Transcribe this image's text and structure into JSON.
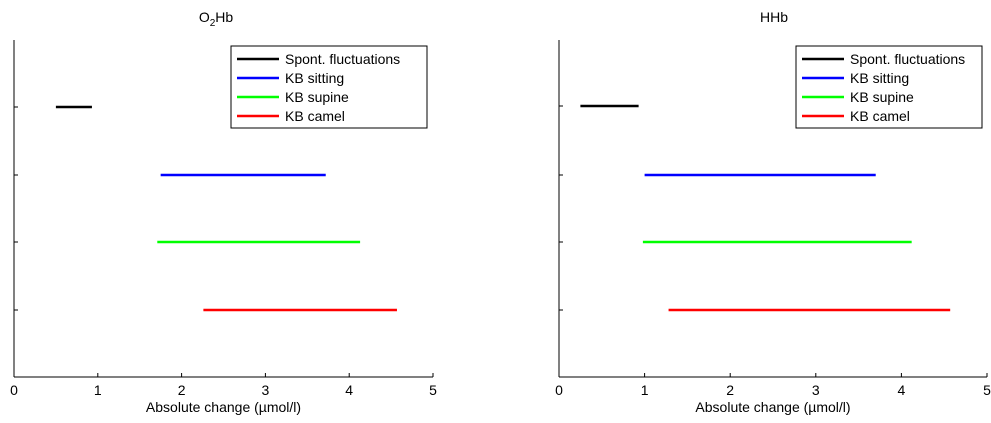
{
  "chart_data": [
    {
      "type": "range",
      "title": "O2Hb",
      "title_main": "O",
      "title_sub": "2",
      "title_tail": "Hb",
      "xlabel": "Absolute change (µmol/l)",
      "ylabel": "",
      "xlim": [
        0,
        5
      ],
      "xticks": [
        "0",
        "1",
        "2",
        "3",
        "4",
        "5"
      ],
      "grid": false,
      "legend_position": "top-right",
      "series": [
        {
          "name": "Spont. fluctuations",
          "color": "#000000",
          "x": [
            0.5,
            0.93
          ]
        },
        {
          "name": "KB sitting",
          "color": "#0000ff",
          "x": [
            1.75,
            3.72
          ]
        },
        {
          "name": "KB supine",
          "color": "#00ff00",
          "x": [
            1.71,
            4.13
          ]
        },
        {
          "name": "KB camel",
          "color": "#ff0000",
          "x": [
            2.26,
            4.57
          ]
        }
      ]
    },
    {
      "type": "range",
      "title": "HHb",
      "xlabel": "Absolute change (µmol/l)",
      "ylabel": "",
      "xlim": [
        0,
        5
      ],
      "xticks": [
        "0",
        "1",
        "2",
        "3",
        "4",
        "5"
      ],
      "grid": false,
      "legend_position": "top-right",
      "series": [
        {
          "name": "Spont. fluctuations",
          "color": "#000000",
          "x": [
            0.25,
            0.93
          ]
        },
        {
          "name": "KB sitting",
          "color": "#0000ff",
          "x": [
            1.0,
            3.7
          ]
        },
        {
          "name": "KB supine",
          "color": "#00ff00",
          "x": [
            0.98,
            4.12
          ]
        },
        {
          "name": "KB camel",
          "color": "#ff0000",
          "x": [
            1.28,
            4.57
          ]
        }
      ]
    }
  ]
}
